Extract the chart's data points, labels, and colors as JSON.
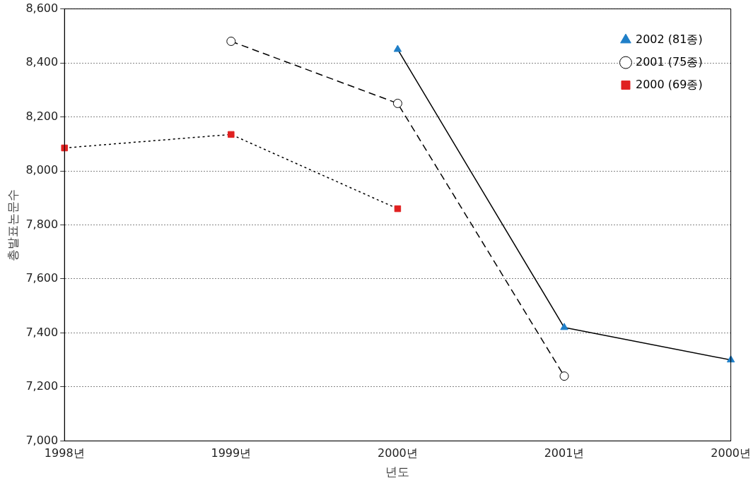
{
  "chart_data": {
    "type": "line",
    "xlabel": "년도",
    "ylabel": "총발표논문수",
    "categories": [
      "1998년",
      "1999년",
      "2000년",
      "2001년",
      "2000년"
    ],
    "series": [
      {
        "name": "2002 (81종)",
        "color": "#000000",
        "colors": [
          null,
          null,
          "#1f7fc8",
          "#1f7fc8",
          "#1f7fc8"
        ],
        "marker": "triangle",
        "line_style": "solid",
        "values": [
          null,
          null,
          8450,
          7420,
          7300
        ]
      },
      {
        "name": "2001 (75종)",
        "color": "#000000",
        "colors": [
          null,
          "#ffffff",
          "#ffffff",
          "#ffffff",
          null
        ],
        "marker": "circle",
        "line_style": "dashed",
        "values": [
          null,
          8480,
          8250,
          7240,
          null
        ]
      },
      {
        "name": "2000 (69종)",
        "color": "#000000",
        "colors": [
          "#e02020",
          "#e02020",
          "#e02020",
          null,
          null
        ],
        "marker": "square",
        "line_style": "dotted",
        "values": [
          8085,
          8135,
          7860,
          null,
          null
        ]
      }
    ],
    "ylim": [
      7000,
      8600
    ],
    "yticks": [
      {
        "value": 7000,
        "label": "7,000"
      },
      {
        "value": 7200,
        "label": "7,200"
      },
      {
        "value": 7400,
        "label": "7,400"
      },
      {
        "value": 7600,
        "label": "7,600"
      },
      {
        "value": 7800,
        "label": "7,800"
      },
      {
        "value": 8000,
        "label": "8,000"
      },
      {
        "value": 8200,
        "label": "8,200"
      },
      {
        "value": 8400,
        "label": "8,400"
      },
      {
        "value": 8600,
        "label": "8,600"
      }
    ],
    "grid": "y",
    "legend": "top right"
  }
}
